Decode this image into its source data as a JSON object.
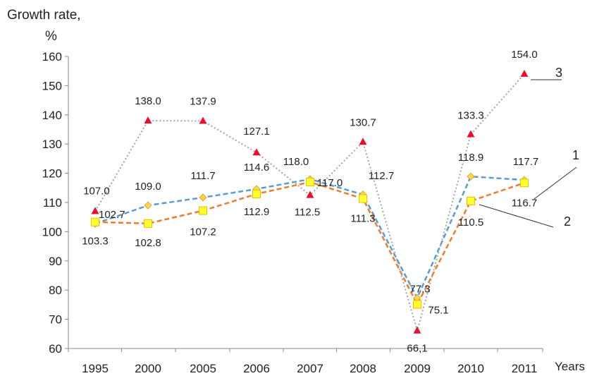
{
  "chart_data": {
    "type": "line",
    "ylabel_line1": "Growth rate,",
    "ylabel_line2": "%",
    "xlabel": "Years",
    "categories": [
      "1995",
      "2000",
      "2005",
      "2006",
      "2007",
      "2008",
      "2009",
      "2010",
      "2011"
    ],
    "ylim": [
      60,
      160
    ],
    "yticks": [
      "60",
      "70",
      "80",
      "90",
      "100",
      "110",
      "120",
      "130",
      "140",
      "150",
      "160"
    ],
    "grid": false,
    "series": [
      {
        "name": "1",
        "color": "#5b9bd5",
        "line_style": "dashed",
        "marker": "diamond",
        "values": [
          102.7,
          109.0,
          111.7,
          114.6,
          118.0,
          112.7,
          77.3,
          118.9,
          117.7
        ],
        "labels": [
          "102.7",
          "109.0",
          "111.7",
          "114.6",
          "118.0",
          "112.7",
          "77.3",
          "118.9",
          "117.7"
        ]
      },
      {
        "name": "2",
        "color": "#ed7d31",
        "line_style": "dashed",
        "marker": "square",
        "values": [
          103.3,
          102.8,
          107.2,
          112.9,
          117.0,
          111.3,
          75.1,
          110.5,
          116.7
        ],
        "labels": [
          "103.3",
          "102.8",
          "107.2",
          "112.9",
          "117.0",
          "111.3",
          "75.1",
          "110.5",
          "116.7"
        ]
      },
      {
        "name": "3",
        "color": "#a5a5a5",
        "line_style": "dotted",
        "marker": "triangle",
        "marker_color": "#e8112d",
        "values": [
          107.0,
          138.0,
          137.9,
          127.1,
          112.5,
          130.7,
          66.1,
          133.3,
          154.0
        ],
        "labels": [
          "107.0",
          "138.0",
          "137.9",
          "127.1",
          "112.5",
          "130.7",
          "66,1",
          "133.3",
          "154.0"
        ]
      }
    ]
  }
}
